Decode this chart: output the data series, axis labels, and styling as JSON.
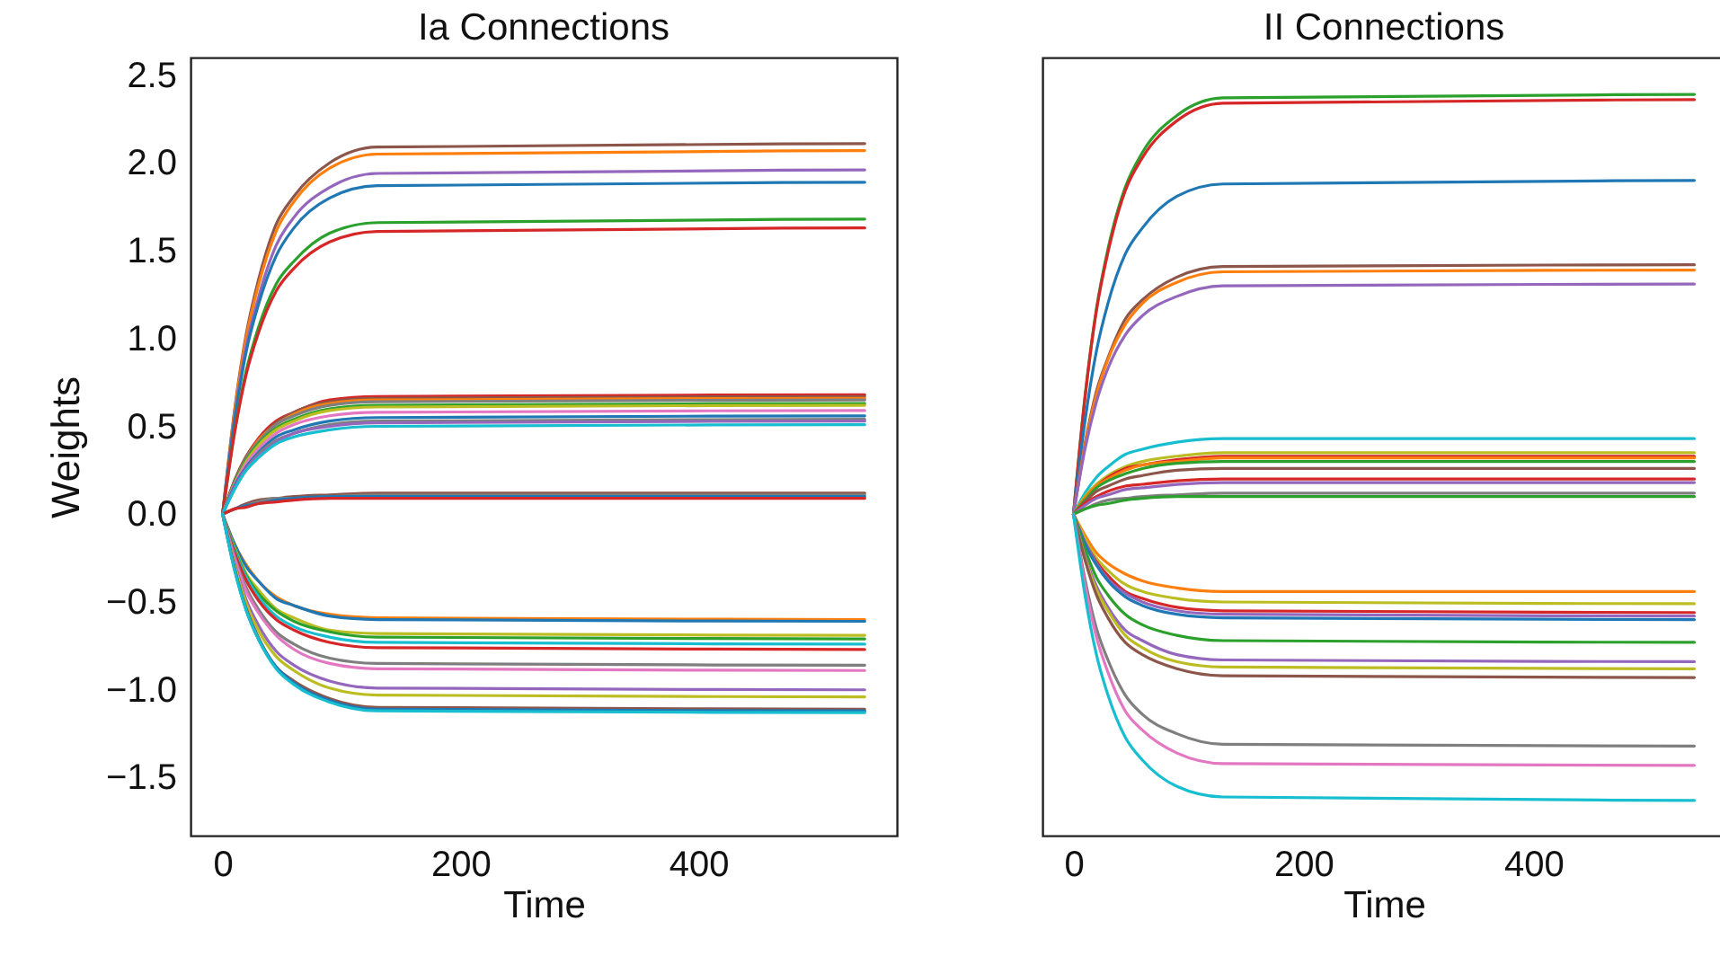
{
  "chart_data": [
    {
      "type": "line",
      "title": "Ia Connections",
      "xlabel": "Time",
      "ylabel": "Weights",
      "xlim": [
        -27,
        567
      ],
      "xticks": [
        0,
        200,
        400
      ],
      "ylim": [
        -1.83,
        2.6
      ],
      "yticks": [
        {
          "value": -1.5,
          "label": "−1.5"
        },
        {
          "value": -1,
          "label": "−1.0"
        },
        {
          "value": -0.5,
          "label": "−0.5"
        },
        {
          "value": 0,
          "label": "0.0"
        },
        {
          "value": 0.5,
          "label": "0.5"
        },
        {
          "value": 1,
          "label": "1.0"
        },
        {
          "value": 1.5,
          "label": "1.5"
        },
        {
          "value": 2,
          "label": "2.0"
        },
        {
          "value": 2.5,
          "label": "2.5"
        }
      ],
      "grid": false,
      "legend": false,
      "x": [
        0,
        10,
        20,
        30,
        45,
        60,
        90,
        130,
        540
      ],
      "series": [
        {
          "color": "#8c564b",
          "values": [
            0,
            0.59,
            1.03,
            1.33,
            1.65,
            1.81,
            2.0,
            2.09,
            2.11
          ]
        },
        {
          "color": "#ff7f0e",
          "values": [
            0,
            0.58,
            1.01,
            1.3,
            1.61,
            1.78,
            1.97,
            2.05,
            2.07
          ]
        },
        {
          "color": "#9467bd",
          "values": [
            0,
            0.55,
            0.96,
            1.23,
            1.53,
            1.69,
            1.86,
            1.94,
            1.96
          ]
        },
        {
          "color": "#1f77b4",
          "values": [
            0,
            0.53,
            0.93,
            1.19,
            1.47,
            1.63,
            1.8,
            1.87,
            1.89
          ]
        },
        {
          "color": "#2ca02c",
          "values": [
            0,
            0.47,
            0.82,
            1.06,
            1.31,
            1.44,
            1.6,
            1.66,
            1.68
          ]
        },
        {
          "color": "#d62728",
          "values": [
            0,
            0.46,
            0.8,
            1.03,
            1.27,
            1.4,
            1.55,
            1.61,
            1.63
          ]
        },
        {
          "color": "#d62728",
          "values": [
            0,
            0.19,
            0.33,
            0.43,
            0.53,
            0.58,
            0.65,
            0.67,
            0.68
          ]
        },
        {
          "color": "#8c564b",
          "values": [
            0,
            0.19,
            0.33,
            0.42,
            0.52,
            0.58,
            0.64,
            0.66,
            0.67
          ]
        },
        {
          "color": "#ff7f0e",
          "values": [
            0,
            0.18,
            0.32,
            0.42,
            0.51,
            0.57,
            0.63,
            0.65,
            0.66
          ]
        },
        {
          "color": "#7f7f7f",
          "values": [
            0,
            0.18,
            0.32,
            0.41,
            0.51,
            0.56,
            0.62,
            0.64,
            0.65
          ]
        },
        {
          "color": "#2ca02c",
          "values": [
            0,
            0.18,
            0.31,
            0.4,
            0.49,
            0.54,
            0.6,
            0.62,
            0.63
          ]
        },
        {
          "color": "#bcbd22",
          "values": [
            0,
            0.17,
            0.3,
            0.39,
            0.48,
            0.53,
            0.59,
            0.61,
            0.62
          ]
        },
        {
          "color": "#e377c2",
          "values": [
            0,
            0.17,
            0.29,
            0.37,
            0.46,
            0.51,
            0.56,
            0.58,
            0.59
          ]
        },
        {
          "color": "#1f77b4",
          "values": [
            0,
            0.16,
            0.27,
            0.35,
            0.44,
            0.48,
            0.53,
            0.55,
            0.56
          ]
        },
        {
          "color": "#7f7f7f",
          "values": [
            0,
            0.15,
            0.26,
            0.34,
            0.42,
            0.46,
            0.51,
            0.53,
            0.54
          ]
        },
        {
          "color": "#9467bd",
          "values": [
            0,
            0.15,
            0.26,
            0.33,
            0.41,
            0.46,
            0.5,
            0.52,
            0.53
          ]
        },
        {
          "color": "#17becf",
          "values": [
            0,
            0.14,
            0.25,
            0.32,
            0.4,
            0.44,
            0.48,
            0.5,
            0.51
          ]
        },
        {
          "color": "#8c564b",
          "values": [
            0,
            0.03,
            0.06,
            0.08,
            0.09,
            0.1,
            0.11,
            0.12,
            0.12
          ]
        },
        {
          "color": "#7f7f7f",
          "values": [
            0,
            0.03,
            0.05,
            0.07,
            0.09,
            0.09,
            0.1,
            0.11,
            0.11
          ]
        },
        {
          "color": "#1f77b4",
          "values": [
            0,
            0.03,
            0.05,
            0.06,
            0.08,
            0.09,
            0.1,
            0.1,
            0.1
          ]
        },
        {
          "color": "#d62728",
          "values": [
            0,
            0.03,
            0.04,
            0.06,
            0.07,
            0.08,
            0.09,
            0.09,
            0.09
          ]
        },
        {
          "color": "#ff7f0e",
          "values": [
            0,
            -0.17,
            -0.29,
            -0.38,
            -0.47,
            -0.52,
            -0.57,
            -0.59,
            -0.6
          ]
        },
        {
          "color": "#1f77b4",
          "values": [
            0,
            -0.17,
            -0.3,
            -0.38,
            -0.48,
            -0.52,
            -0.58,
            -0.6,
            -0.61
          ]
        },
        {
          "color": "#bcbd22",
          "values": [
            0,
            -0.19,
            -0.34,
            -0.43,
            -0.54,
            -0.59,
            -0.66,
            -0.68,
            -0.69
          ]
        },
        {
          "color": "#2ca02c",
          "values": [
            0,
            -0.2,
            -0.35,
            -0.45,
            -0.55,
            -0.61,
            -0.67,
            -0.7,
            -0.71
          ]
        },
        {
          "color": "#17becf",
          "values": [
            0,
            -0.21,
            -0.36,
            -0.47,
            -0.58,
            -0.64,
            -0.7,
            -0.73,
            -0.74
          ]
        },
        {
          "color": "#d62728",
          "values": [
            0,
            -0.22,
            -0.38,
            -0.49,
            -0.6,
            -0.66,
            -0.73,
            -0.76,
            -0.77
          ]
        },
        {
          "color": "#7f7f7f",
          "values": [
            0,
            -0.24,
            -0.42,
            -0.54,
            -0.67,
            -0.74,
            -0.82,
            -0.85,
            -0.86
          ]
        },
        {
          "color": "#e377c2",
          "values": [
            0,
            -0.25,
            -0.44,
            -0.56,
            -0.69,
            -0.77,
            -0.85,
            -0.88,
            -0.89
          ]
        },
        {
          "color": "#9467bd",
          "values": [
            0,
            -0.28,
            -0.49,
            -0.63,
            -0.78,
            -0.86,
            -0.95,
            -0.99,
            -1.0
          ]
        },
        {
          "color": "#bcbd22",
          "values": [
            0,
            -0.29,
            -0.51,
            -0.66,
            -0.81,
            -0.89,
            -0.99,
            -1.03,
            -1.04
          ]
        },
        {
          "color": "#8c564b",
          "values": [
            0,
            -0.31,
            -0.54,
            -0.7,
            -0.87,
            -0.95,
            -1.05,
            -1.1,
            -1.11
          ]
        },
        {
          "color": "#1f77b4",
          "values": [
            0,
            -0.31,
            -0.55,
            -0.71,
            -0.87,
            -0.96,
            -1.06,
            -1.11,
            -1.12
          ]
        },
        {
          "color": "#17becf",
          "values": [
            0,
            -0.32,
            -0.55,
            -0.71,
            -0.88,
            -0.97,
            -1.07,
            -1.12,
            -1.13
          ]
        }
      ]
    },
    {
      "type": "line",
      "title": "II Connections",
      "xlabel": "Time",
      "xlim": [
        -27,
        567
      ],
      "xticks": [
        0,
        200,
        400
      ],
      "ylim": [
        -1.83,
        2.6
      ],
      "tick_labels": "x",
      "grid": false,
      "legend": false,
      "x": [
        0,
        10,
        20,
        30,
        45,
        60,
        90,
        130,
        540
      ],
      "series": [
        {
          "color": "#2ca02c",
          "values": [
            0,
            0.67,
            1.17,
            1.51,
            1.86,
            2.06,
            2.27,
            2.37,
            2.39
          ]
        },
        {
          "color": "#d62728",
          "values": [
            0,
            0.66,
            1.16,
            1.49,
            1.84,
            2.03,
            2.24,
            2.34,
            2.36
          ]
        },
        {
          "color": "#1f77b4",
          "values": [
            0,
            0.53,
            0.93,
            1.2,
            1.48,
            1.63,
            1.81,
            1.88,
            1.9
          ]
        },
        {
          "color": "#8c564b",
          "values": [
            0,
            0.4,
            0.7,
            0.89,
            1.11,
            1.22,
            1.35,
            1.41,
            1.42
          ]
        },
        {
          "color": "#ff7f0e",
          "values": [
            0,
            0.39,
            0.68,
            0.88,
            1.08,
            1.2,
            1.32,
            1.38,
            1.39
          ]
        },
        {
          "color": "#9467bd",
          "values": [
            0,
            0.37,
            0.64,
            0.83,
            1.02,
            1.13,
            1.24,
            1.3,
            1.31
          ]
        },
        {
          "color": "#17becf",
          "values": [
            0,
            0.12,
            0.21,
            0.27,
            0.34,
            0.37,
            0.41,
            0.43,
            0.43
          ]
        },
        {
          "color": "#bcbd22",
          "values": [
            0,
            0.1,
            0.17,
            0.22,
            0.27,
            0.3,
            0.33,
            0.35,
            0.35
          ]
        },
        {
          "color": "#d62728",
          "values": [
            0,
            0.09,
            0.16,
            0.21,
            0.26,
            0.28,
            0.31,
            0.33,
            0.33
          ]
        },
        {
          "color": "#ff7f0e",
          "values": [
            0,
            0.09,
            0.16,
            0.2,
            0.25,
            0.28,
            0.3,
            0.32,
            0.32
          ]
        },
        {
          "color": "#2ca02c",
          "values": [
            0,
            0.08,
            0.15,
            0.19,
            0.23,
            0.26,
            0.29,
            0.3,
            0.3
          ]
        },
        {
          "color": "#8c564b",
          "values": [
            0,
            0.07,
            0.13,
            0.16,
            0.2,
            0.22,
            0.25,
            0.26,
            0.26
          ]
        },
        {
          "color": "#d62728",
          "values": [
            0,
            0.06,
            0.1,
            0.13,
            0.16,
            0.17,
            0.19,
            0.2,
            0.2
          ]
        },
        {
          "color": "#9467bd",
          "values": [
            0,
            0.05,
            0.09,
            0.11,
            0.14,
            0.15,
            0.17,
            0.18,
            0.18
          ]
        },
        {
          "color": "#7f7f7f",
          "values": [
            0,
            0.03,
            0.06,
            0.08,
            0.09,
            0.1,
            0.11,
            0.12,
            0.12
          ]
        },
        {
          "color": "#2ca02c",
          "values": [
            0,
            0.03,
            0.05,
            0.06,
            0.08,
            0.09,
            0.1,
            0.1,
            0.1
          ]
        },
        {
          "color": "#ff7f0e",
          "values": [
            0,
            -0.12,
            -0.22,
            -0.28,
            -0.34,
            -0.38,
            -0.42,
            -0.44,
            -0.44
          ]
        },
        {
          "color": "#bcbd22",
          "values": [
            0,
            -0.14,
            -0.25,
            -0.32,
            -0.4,
            -0.44,
            -0.48,
            -0.5,
            -0.51
          ]
        },
        {
          "color": "#d62728",
          "values": [
            0,
            -0.16,
            -0.27,
            -0.35,
            -0.44,
            -0.48,
            -0.53,
            -0.55,
            -0.56
          ]
        },
        {
          "color": "#9467bd",
          "values": [
            0,
            -0.16,
            -0.28,
            -0.37,
            -0.45,
            -0.5,
            -0.55,
            -0.57,
            -0.58
          ]
        },
        {
          "color": "#1f77b4",
          "values": [
            0,
            -0.17,
            -0.29,
            -0.38,
            -0.47,
            -0.52,
            -0.57,
            -0.59,
            -0.6
          ]
        },
        {
          "color": "#2ca02c",
          "values": [
            0,
            -0.2,
            -0.36,
            -0.46,
            -0.57,
            -0.63,
            -0.69,
            -0.72,
            -0.73
          ]
        },
        {
          "color": "#9467bd",
          "values": [
            0,
            -0.24,
            -0.41,
            -0.53,
            -0.66,
            -0.72,
            -0.8,
            -0.83,
            -0.84
          ]
        },
        {
          "color": "#bcbd22",
          "values": [
            0,
            -0.25,
            -0.43,
            -0.55,
            -0.69,
            -0.76,
            -0.84,
            -0.87,
            -0.88
          ]
        },
        {
          "color": "#8c564b",
          "values": [
            0,
            -0.26,
            -0.46,
            -0.59,
            -0.73,
            -0.8,
            -0.88,
            -0.92,
            -0.93
          ]
        },
        {
          "color": "#7f7f7f",
          "values": [
            0,
            -0.37,
            -0.65,
            -0.83,
            -1.03,
            -1.14,
            -1.25,
            -1.31,
            -1.32
          ]
        },
        {
          "color": "#e377c2",
          "values": [
            0,
            -0.4,
            -0.7,
            -0.9,
            -1.12,
            -1.23,
            -1.36,
            -1.42,
            -1.43
          ]
        },
        {
          "color": "#17becf",
          "values": [
            0,
            -0.46,
            -0.8,
            -1.03,
            -1.27,
            -1.4,
            -1.55,
            -1.61,
            -1.63
          ]
        }
      ]
    }
  ]
}
